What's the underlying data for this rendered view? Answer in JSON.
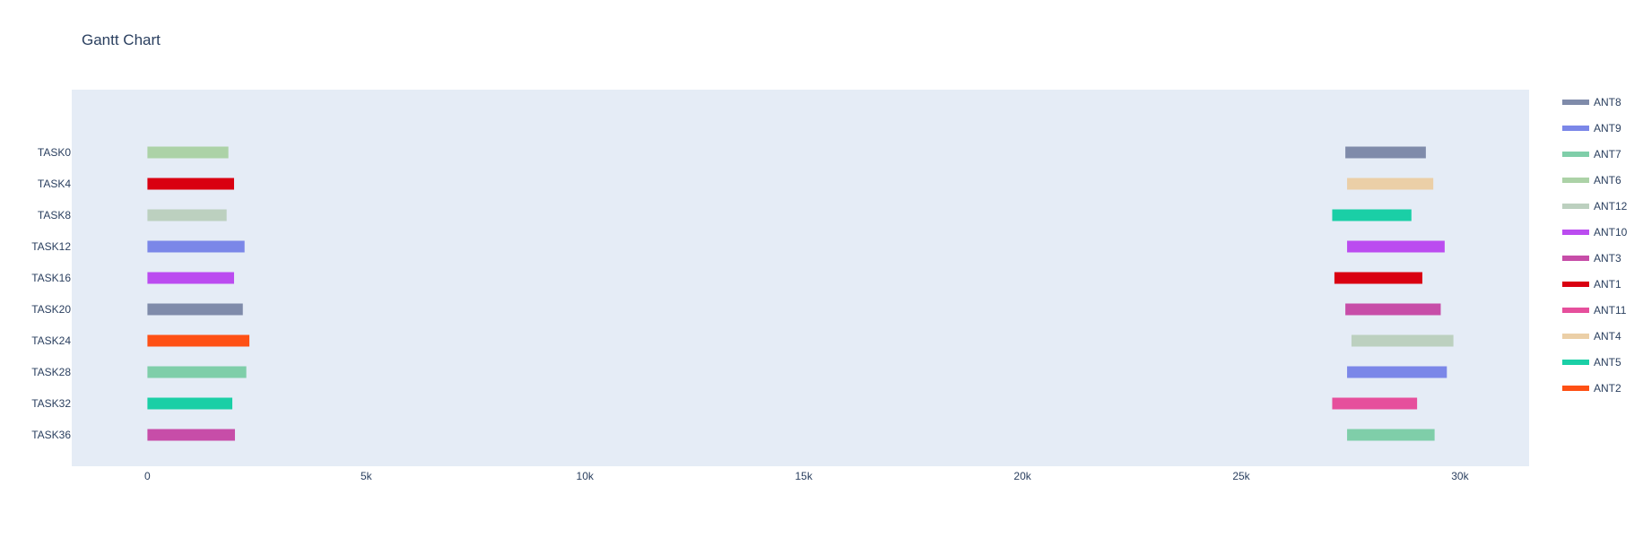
{
  "chart_data": {
    "type": "gantt",
    "title": "Gantt Chart",
    "xlabel": "",
    "ylabel": "",
    "xlim": [
      -1730,
      31580
    ],
    "x_ticks": [
      {
        "value": 0,
        "label": "0"
      },
      {
        "value": 5000,
        "label": "5k"
      },
      {
        "value": 10000,
        "label": "10k"
      },
      {
        "value": 15000,
        "label": "15k"
      },
      {
        "value": 20000,
        "label": "20k"
      },
      {
        "value": 25000,
        "label": "25k"
      },
      {
        "value": 30000,
        "label": "30k"
      }
    ],
    "categories": [
      "TASK36",
      "TASK32",
      "TASK28",
      "TASK24",
      "TASK20",
      "TASK16",
      "TASK12",
      "TASK8",
      "TASK4",
      "TASK0"
    ],
    "grid": false,
    "legend_position": "right",
    "plot_background": "#e5ecf6",
    "series": [
      {
        "name": "ANT8",
        "color": "#7f8baa",
        "bars": [
          {
            "task": "TASK20",
            "start": 0,
            "end": 2180
          },
          {
            "task": "TASK0",
            "start": 27380,
            "end": 29220
          }
        ]
      },
      {
        "name": "ANT9",
        "color": "#7b87e8",
        "bars": [
          {
            "task": "TASK12",
            "start": 0,
            "end": 2220
          },
          {
            "task": "TASK28",
            "start": 27420,
            "end": 29700
          }
        ]
      },
      {
        "name": "ANT7",
        "color": "#7fcea9",
        "bars": [
          {
            "task": "TASK28",
            "start": 0,
            "end": 2260
          },
          {
            "task": "TASK36",
            "start": 27420,
            "end": 29420
          }
        ]
      },
      {
        "name": "ANT6",
        "color": "#acd2a7",
        "bars": [
          {
            "task": "TASK0",
            "start": 0,
            "end": 1850
          }
        ]
      },
      {
        "name": "ANT12",
        "color": "#bcd0bf",
        "bars": [
          {
            "task": "TASK8",
            "start": 0,
            "end": 1810
          },
          {
            "task": "TASK24",
            "start": 27520,
            "end": 29850
          }
        ]
      },
      {
        "name": "ANT10",
        "color": "#bb4cf0",
        "bars": [
          {
            "task": "TASK16",
            "start": 0,
            "end": 1980
          },
          {
            "task": "TASK12",
            "start": 27420,
            "end": 29650
          }
        ]
      },
      {
        "name": "ANT3",
        "color": "#c74da8",
        "bars": [
          {
            "task": "TASK36",
            "start": 0,
            "end": 2000
          },
          {
            "task": "TASK20",
            "start": 27380,
            "end": 29560
          }
        ]
      },
      {
        "name": "ANT1",
        "color": "#d90011",
        "bars": [
          {
            "task": "TASK4",
            "start": 0,
            "end": 1980
          },
          {
            "task": "TASK16",
            "start": 27130,
            "end": 29140
          }
        ]
      },
      {
        "name": "ANT11",
        "color": "#e64f9c",
        "bars": [
          {
            "task": "TASK32",
            "start": 27080,
            "end": 29020
          }
        ]
      },
      {
        "name": "ANT4",
        "color": "#ebcfa7",
        "bars": [
          {
            "task": "TASK4",
            "start": 27420,
            "end": 29390
          }
        ]
      },
      {
        "name": "ANT5",
        "color": "#1acfa6",
        "bars": [
          {
            "task": "TASK32",
            "start": 0,
            "end": 1940
          },
          {
            "task": "TASK8",
            "start": 27080,
            "end": 28890
          }
        ]
      },
      {
        "name": "ANT2",
        "color": "#fe5015",
        "bars": [
          {
            "task": "TASK24",
            "start": 0,
            "end": 2330
          }
        ]
      }
    ]
  }
}
